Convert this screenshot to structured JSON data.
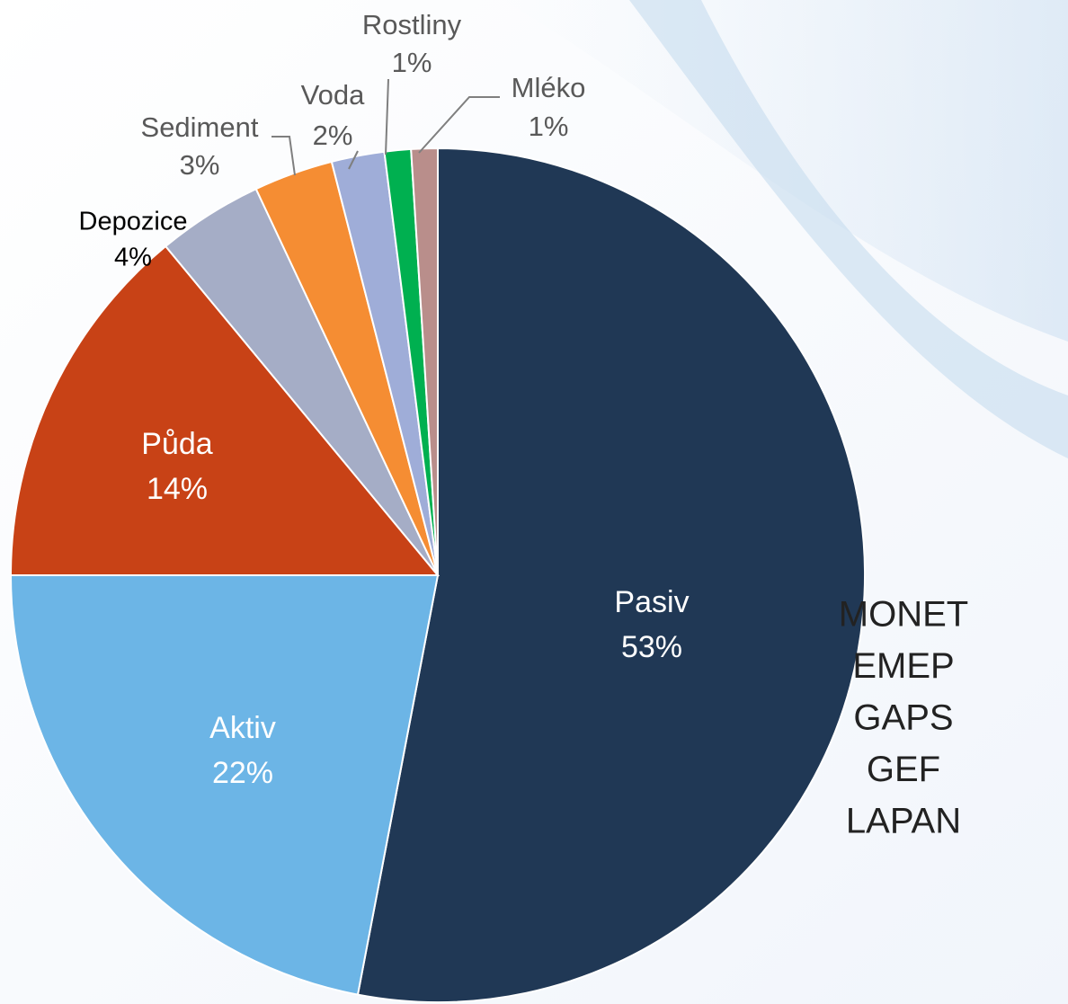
{
  "chart_data": {
    "type": "pie",
    "categories": [
      "Pasiv",
      "Aktiv",
      "Půda",
      "Depozice",
      "Sediment",
      "Voda",
      "Rostliny",
      "Mléko"
    ],
    "values": [
      53,
      22,
      14,
      4,
      3,
      2,
      1,
      1
    ],
    "value_labels": [
      "53%",
      "22%",
      "14%",
      "4%",
      "3%",
      "2%",
      "1%",
      "1%"
    ],
    "colors": [
      "#203855",
      "#6cb5e6",
      "#c84216",
      "#a5adc6",
      "#f58d33",
      "#9fadd8",
      "#00b050",
      "#b98e8b"
    ]
  },
  "side_list": [
    "MONET",
    "EMEP",
    "GAPS",
    "GEF",
    "LAPAN"
  ]
}
